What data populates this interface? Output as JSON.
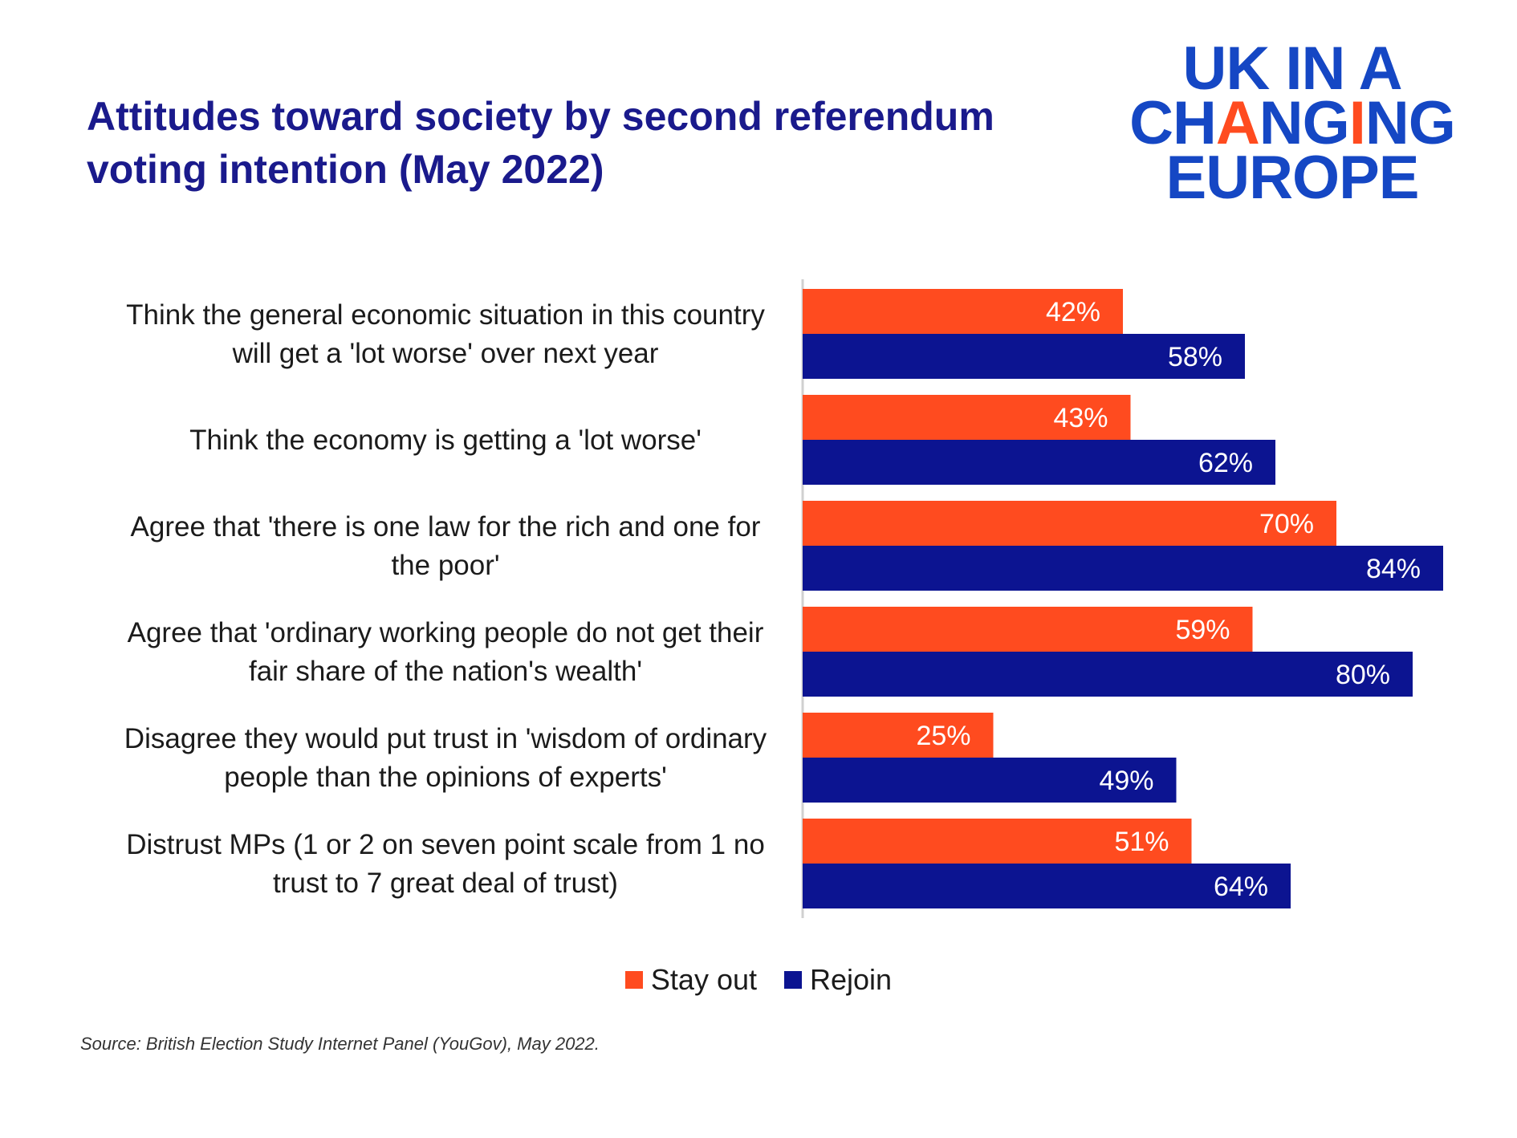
{
  "title": "Attitudes toward society by second referendum voting intention (May 2022)",
  "logo": {
    "line1": "UK IN A",
    "line2_pre": "CH",
    "line2_a": "A",
    "line2_mid": "NG",
    "line2_i": "I",
    "line2_post": "NG",
    "line3": "EUROPE"
  },
  "colors": {
    "stay_out": "#ff4b1f",
    "rejoin": "#0c1491",
    "title": "#1a1a8c",
    "logo": "#1547c4"
  },
  "chart_data": {
    "type": "bar",
    "orientation": "horizontal",
    "categories": [
      [
        "Think the general economic situation in this country",
        "will get a 'lot worse' over next year"
      ],
      [
        "Think the economy is getting a 'lot worse'"
      ],
      [
        "Agree that 'there is one law for the rich and one for",
        "the poor'"
      ],
      [
        "Agree that 'ordinary working people do not get their",
        "fair share of the nation's wealth'"
      ],
      [
        "Disagree they would put trust in 'wisdom of ordinary",
        "people than the opinions of experts'"
      ],
      [
        "Distrust MPs (1 or 2 on seven point scale from 1 no",
        "trust to 7 great deal of trust)"
      ]
    ],
    "series": [
      {
        "name": "Stay out",
        "values": [
          42,
          43,
          70,
          59,
          25,
          51
        ],
        "labels": [
          "42%",
          "43%",
          "70%",
          "59%",
          "25%",
          "51%"
        ]
      },
      {
        "name": "Rejoin",
        "values": [
          58,
          62,
          84,
          80,
          49,
          64
        ],
        "labels": [
          "58%",
          "62%",
          "84%",
          "80%",
          "49%",
          "64%"
        ]
      }
    ],
    "xlim": [
      0,
      100
    ],
    "grid": false,
    "legend": "bottom"
  },
  "legend": {
    "stay_out": "Stay out",
    "rejoin": "Rejoin"
  },
  "source": "Source: British Election Study Internet Panel (YouGov), May 2022."
}
